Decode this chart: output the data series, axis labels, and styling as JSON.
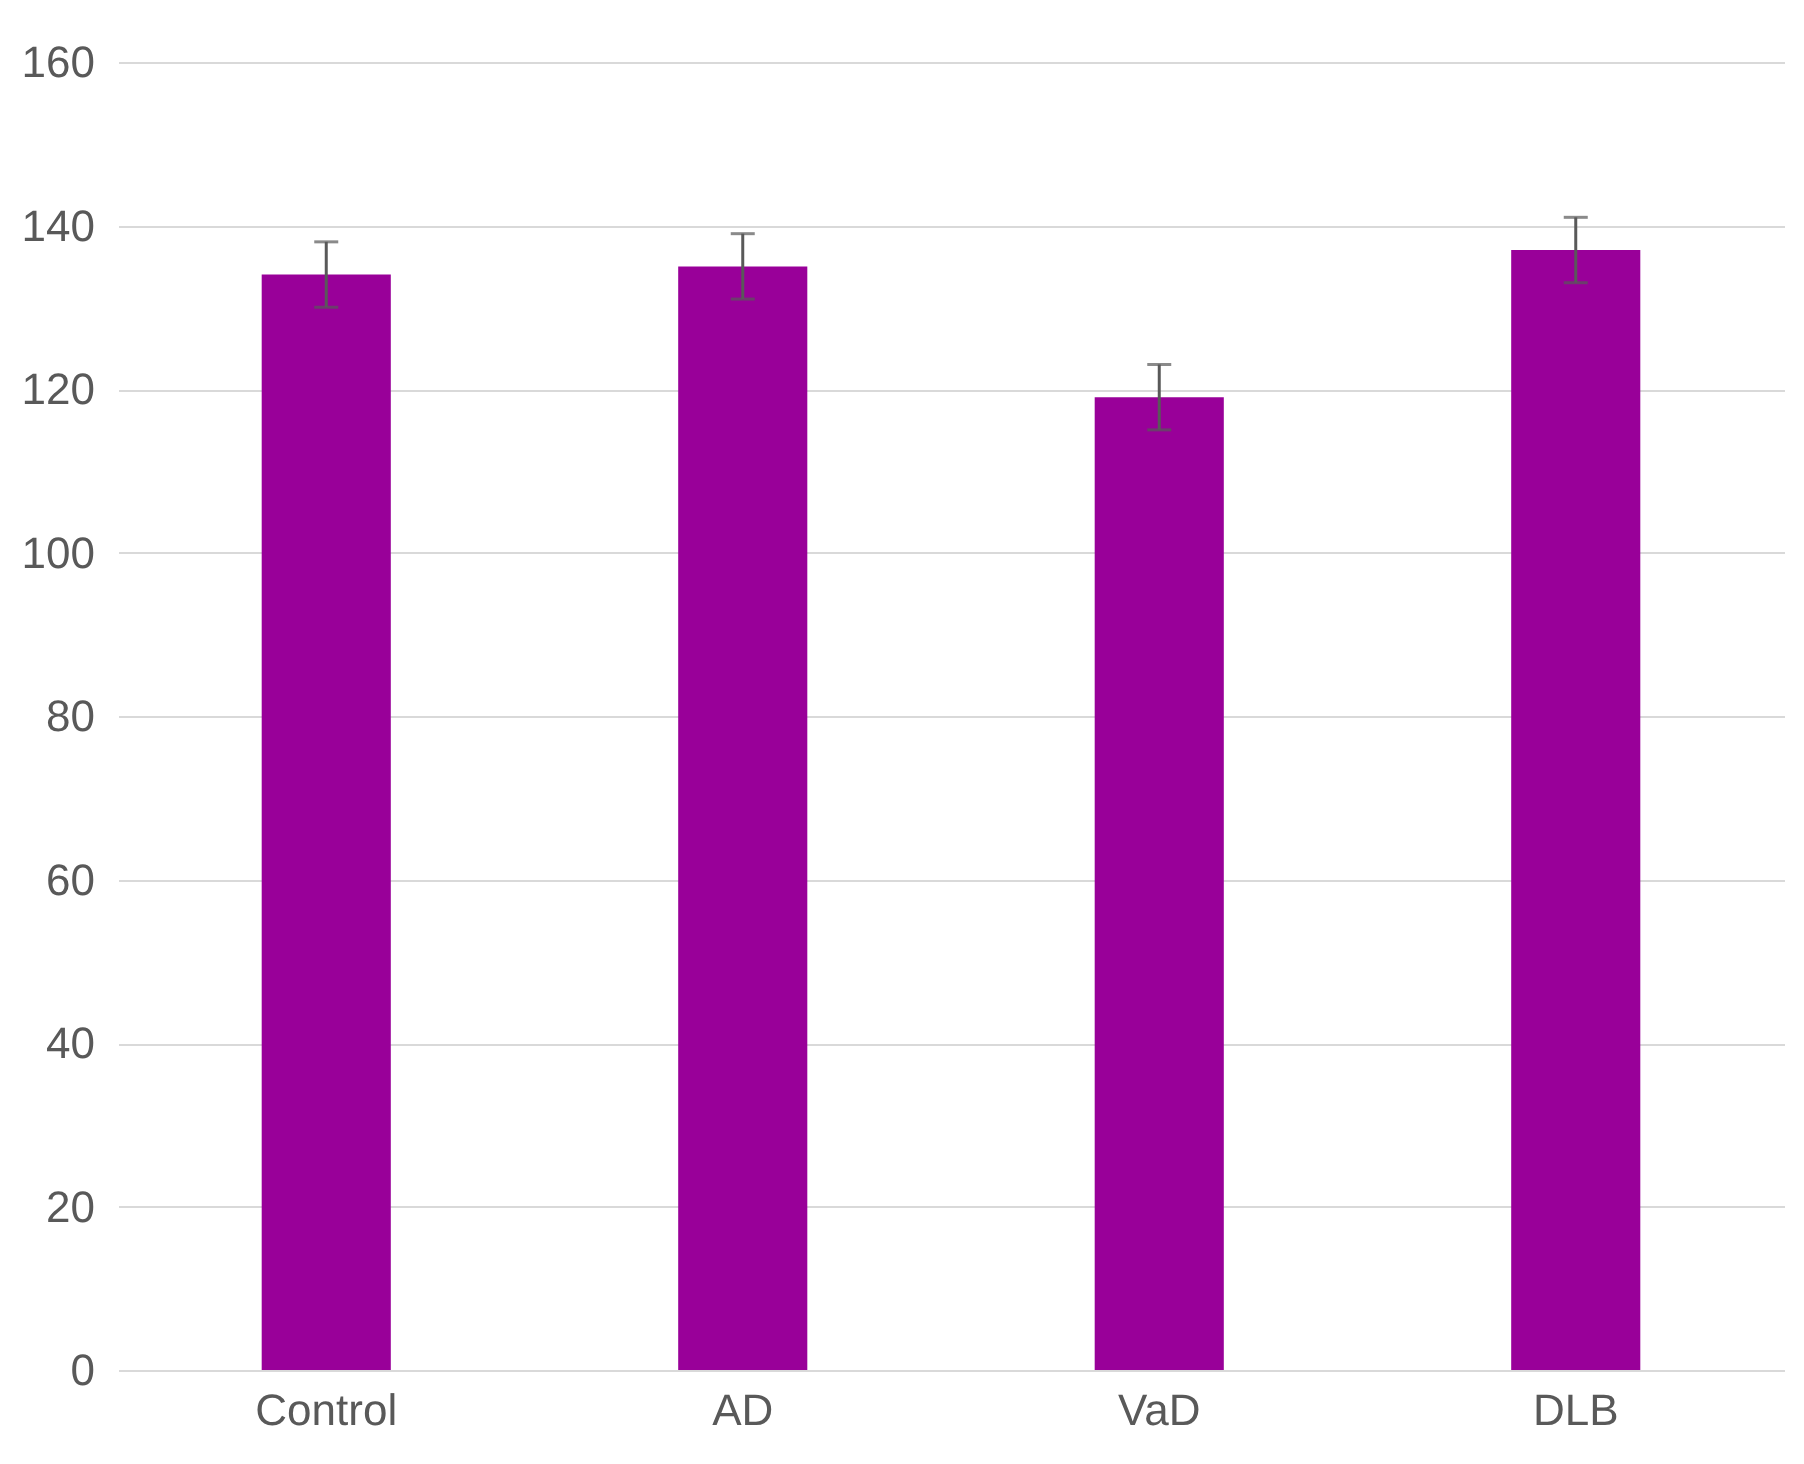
{
  "chart_data": {
    "type": "bar",
    "categories": [
      "Control",
      "AD",
      "VaD",
      "DLB"
    ],
    "values": [
      134,
      135,
      119,
      137
    ],
    "errors": [
      4,
      4,
      4,
      4
    ],
    "color": "#990099",
    "ylim": [
      0,
      160
    ],
    "yticks": [
      0,
      20,
      40,
      60,
      80,
      100,
      120,
      140,
      160
    ],
    "grid": "y"
  }
}
